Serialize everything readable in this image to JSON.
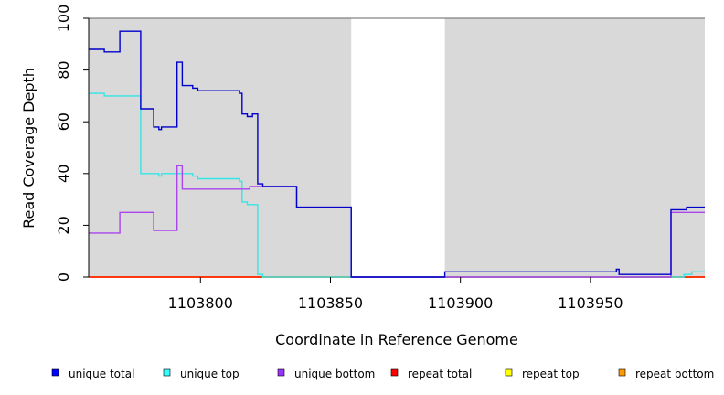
{
  "chart_data": {
    "type": "line",
    "xlabel": "Coordinate in Reference Genome",
    "ylabel": "Read Coverage Depth",
    "xlim": [
      1103757,
      1103994
    ],
    "ylim": [
      0,
      100
    ],
    "x_ticks": [
      1103800,
      1103850,
      1103900,
      1103950
    ],
    "y_ticks": [
      0,
      20,
      40,
      60,
      80,
      100
    ],
    "shaded_regions": [
      {
        "from": 1103757,
        "to": 1103858,
        "color": "#d9d9d9"
      },
      {
        "from": 1103894,
        "to": 1103994,
        "color": "#d9d9d9"
      }
    ],
    "step": true,
    "series": [
      {
        "name": "unique total",
        "color": "#0000cc",
        "points": [
          [
            1103757,
            88
          ],
          [
            1103763,
            87
          ],
          [
            1103769,
            95
          ],
          [
            1103777,
            65
          ],
          [
            1103782,
            58
          ],
          [
            1103784,
            57
          ],
          [
            1103785,
            58
          ],
          [
            1103791,
            83
          ],
          [
            1103793,
            74
          ],
          [
            1103797,
            73
          ],
          [
            1103799,
            72
          ],
          [
            1103815,
            71
          ],
          [
            1103816,
            63
          ],
          [
            1103818,
            62
          ],
          [
            1103820,
            63
          ],
          [
            1103822,
            36
          ],
          [
            1103824,
            35
          ],
          [
            1103837,
            27
          ],
          [
            1103858,
            0
          ],
          [
            1103894,
            2
          ],
          [
            1103960,
            3
          ],
          [
            1103961,
            1
          ],
          [
            1103981,
            26
          ],
          [
            1103987,
            27
          ],
          [
            1103994,
            27
          ]
        ]
      },
      {
        "name": "unique top",
        "color": "#33e6e6",
        "points": [
          [
            1103757,
            71
          ],
          [
            1103763,
            70
          ],
          [
            1103777,
            40
          ],
          [
            1103784,
            39
          ],
          [
            1103785,
            40
          ],
          [
            1103797,
            39
          ],
          [
            1103799,
            38
          ],
          [
            1103815,
            37
          ],
          [
            1103816,
            29
          ],
          [
            1103818,
            28
          ],
          [
            1103822,
            1
          ],
          [
            1103824,
            0
          ],
          [
            1103960,
            0
          ],
          [
            1103986,
            1
          ],
          [
            1103989,
            2
          ],
          [
            1103994,
            2
          ]
        ]
      },
      {
        "name": "unique bottom",
        "color": "#aa44ee",
        "points": [
          [
            1103757,
            17
          ],
          [
            1103769,
            25
          ],
          [
            1103782,
            18
          ],
          [
            1103791,
            43
          ],
          [
            1103793,
            34
          ],
          [
            1103819,
            35
          ],
          [
            1103822,
            35
          ],
          [
            1103837,
            27
          ],
          [
            1103858,
            0
          ],
          [
            1103981,
            25
          ],
          [
            1103994,
            25
          ]
        ]
      },
      {
        "name": "repeat total",
        "color": "#ff0000",
        "points": [
          [
            1103757,
            0
          ],
          [
            1103994,
            0
          ]
        ]
      },
      {
        "name": "repeat top",
        "color": "#ffff00",
        "points": [
          [
            1103757,
            0
          ],
          [
            1103994,
            0
          ]
        ]
      },
      {
        "name": "repeat bottom",
        "color": "#ff9900",
        "points": [
          [
            1103757,
            0
          ],
          [
            1103994,
            0
          ]
        ]
      }
    ],
    "legend": {
      "placement": "bottom",
      "items": [
        {
          "label": "unique total",
          "color": "#0000ff"
        },
        {
          "label": "unique top",
          "color": "#33ffff"
        },
        {
          "label": "unique bottom",
          "color": "#9933ff"
        },
        {
          "label": "repeat total",
          "color": "#ff0000"
        },
        {
          "label": "repeat top",
          "color": "#ffff00"
        },
        {
          "label": "repeat bottom",
          "color": "#ff9900"
        }
      ]
    }
  }
}
